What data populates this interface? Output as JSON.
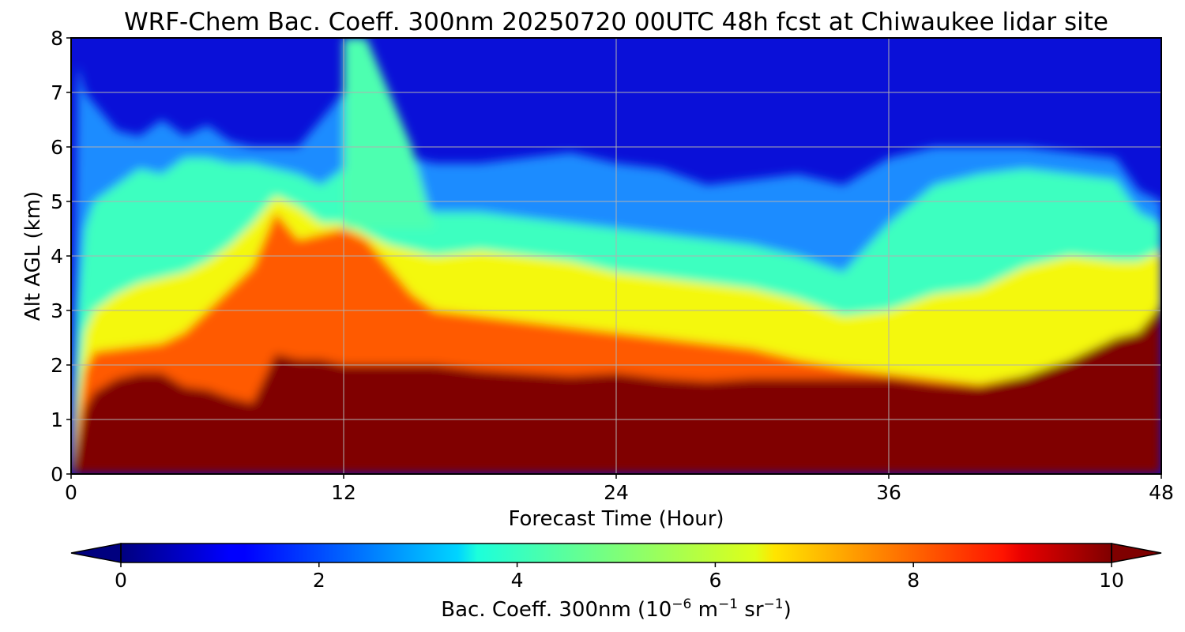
{
  "chart_data": {
    "type": "heatmap",
    "title": "WRF-Chem Bac. Coeff. 300nm  20250720 00UTC 48h fcst at Chiwaukee lidar site",
    "xlabel": "Forecast Time (Hour)",
    "ylabel": "Alt AGL (km)",
    "xlim": [
      0,
      48
    ],
    "ylim": [
      0,
      8
    ],
    "xticks": [
      "0",
      "12",
      "24",
      "36",
      "48"
    ],
    "yticks": [
      "0",
      "1",
      "2",
      "3",
      "4",
      "5",
      "6",
      "7",
      "8"
    ],
    "grid": true,
    "colormap": "jet",
    "colorbar": {
      "label_main": "Bac. Coeff. 300nm  (10",
      "label_exp1": "−6",
      "label_mid": " m",
      "label_exp2": "−1",
      "label_mid2": " sr",
      "label_exp3": "−1",
      "label_end": ")",
      "range": [
        0,
        10
      ],
      "extend": "both",
      "ticks": [
        "0",
        "2",
        "4",
        "6",
        "8",
        "10"
      ]
    },
    "profile_hours": [
      0,
      0.3,
      0.6,
      1,
      2,
      3,
      4,
      5,
      6,
      7,
      8,
      9,
      10,
      11,
      12,
      13,
      14,
      15,
      16,
      18,
      20,
      22,
      24,
      26,
      28,
      30,
      32,
      34,
      36,
      38,
      40,
      42,
      44,
      46,
      47,
      48
    ],
    "layer_top_km": {
      "dark_red_layer": [
        0,
        0.6,
        1.2,
        1.5,
        1.75,
        1.85,
        1.85,
        1.6,
        1.55,
        1.4,
        1.3,
        2.2,
        2.1,
        2.1,
        2.0,
        2.0,
        2.0,
        2.0,
        2.0,
        1.9,
        1.85,
        1.8,
        1.85,
        1.75,
        1.7,
        1.75,
        1.75,
        1.75,
        1.75,
        1.65,
        1.6,
        1.8,
        2.1,
        2.5,
        2.6,
        3.1
      ],
      "red_orange_top": [
        0,
        1.0,
        1.9,
        2.25,
        2.3,
        2.35,
        2.4,
        2.6,
        3.0,
        3.4,
        3.8,
        4.8,
        4.3,
        4.4,
        4.5,
        4.3,
        3.8,
        3.3,
        3.0,
        2.9,
        2.8,
        2.7,
        2.6,
        2.5,
        2.4,
        2.3,
        2.1,
        1.95,
        1.85,
        1.75,
        1.65,
        1.8,
        2.1,
        2.5,
        2.6,
        3.1
      ],
      "yellow_top": [
        0,
        1.5,
        2.6,
        3.0,
        3.3,
        3.5,
        3.6,
        3.7,
        3.9,
        4.2,
        4.6,
        5.1,
        4.9,
        4.6,
        4.6,
        4.4,
        4.2,
        4.1,
        4.0,
        4.1,
        4.0,
        3.9,
        3.7,
        3.6,
        3.5,
        3.4,
        3.2,
        2.9,
        3.0,
        3.3,
        3.4,
        3.8,
        4.0,
        3.9,
        3.9,
        4.1
      ],
      "cyan_top": [
        0,
        3.0,
        4.5,
        5.0,
        5.3,
        5.6,
        5.5,
        5.8,
        5.8,
        5.7,
        5.7,
        5.6,
        5.5,
        5.3,
        5.6,
        5.2,
        5.0,
        4.9,
        4.8,
        4.8,
        4.7,
        4.6,
        4.5,
        4.4,
        4.3,
        4.2,
        4.0,
        3.7,
        4.6,
        5.3,
        5.5,
        5.6,
        5.5,
        5.4,
        4.8,
        4.6
      ],
      "light_blue_top": [
        0,
        7.5,
        7.0,
        6.8,
        6.3,
        6.2,
        6.5,
        6.2,
        6.4,
        6.1,
        6.0,
        6.0,
        6.0,
        6.5,
        7.0,
        6.2,
        6.0,
        5.8,
        5.7,
        5.7,
        5.8,
        5.9,
        5.7,
        5.6,
        5.3,
        5.4,
        5.5,
        5.3,
        5.8,
        6.0,
        6.0,
        6.0,
        5.9,
        5.8,
        5.2,
        5.0
      ]
    },
    "plume_cyan_hours": [
      12,
      13,
      14,
      15
    ],
    "plume_cyan_top_km": [
      8,
      8,
      7,
      6
    ]
  }
}
